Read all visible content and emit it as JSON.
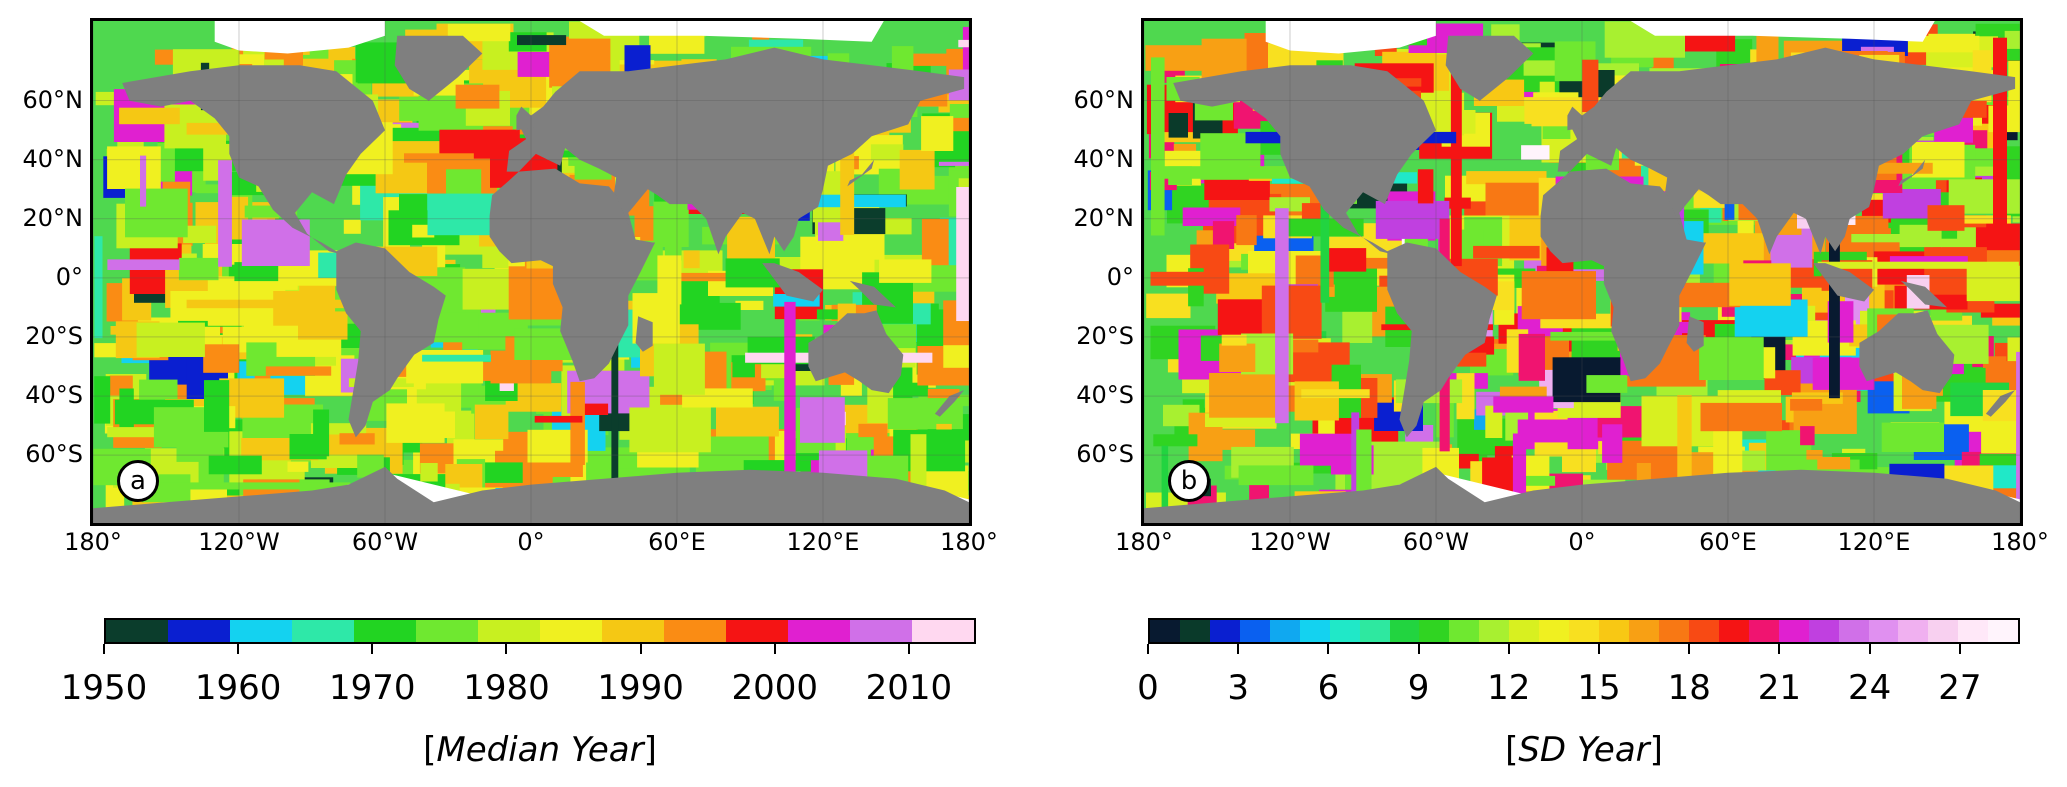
{
  "lat_labels": [
    "60°N",
    "40°N",
    "20°N",
    "0°",
    "20°S",
    "40°S",
    "60°S"
  ],
  "lat_values": [
    60,
    40,
    20,
    0,
    -20,
    -40,
    -60
  ],
  "lon_labels": [
    "180°",
    "120°W",
    "60°W",
    "0°",
    "60°E",
    "120°E",
    "180°"
  ],
  "lon_values": [
    -180,
    -120,
    -60,
    0,
    60,
    120,
    180
  ],
  "panels": [
    {
      "badge": "a",
      "colorbar": {
        "title_open": "[",
        "title_italic": "Median Year",
        "title_close": "]",
        "min": 1950,
        "max": 2015,
        "ticks": [
          "1950",
          "1960",
          "1970",
          "1980",
          "1990",
          "2000",
          "2010"
        ],
        "tick_values": [
          1950,
          1960,
          1970,
          1980,
          1990,
          2000,
          2010
        ],
        "colors": [
          "#0b3d2c",
          "#0a1fd0",
          "#14d2f0",
          "#2ee8a8",
          "#22d422",
          "#6fe830",
          "#c8f020",
          "#f0f020",
          "#f5c814",
          "#fa8c14",
          "#f51414",
          "#e020d0",
          "#d070e8",
          "#ffd8f0"
        ]
      }
    },
    {
      "badge": "b",
      "colorbar": {
        "title_open": "[",
        "title_italic": "SD Year",
        "title_close": "]",
        "min": 0,
        "max": 29,
        "ticks": [
          "0",
          "3",
          "6",
          "9",
          "12",
          "15",
          "18",
          "21",
          "24",
          "27"
        ],
        "tick_values": [
          0,
          3,
          6,
          9,
          12,
          15,
          18,
          21,
          24,
          27
        ],
        "colors": [
          "#081a30",
          "#0a3a2a",
          "#0a1fd0",
          "#0a60f0",
          "#10a8f0",
          "#14d2f0",
          "#20e8c8",
          "#2ee8a0",
          "#22d440",
          "#30d422",
          "#6fe830",
          "#a8f030",
          "#d8f020",
          "#f0f020",
          "#f8e020",
          "#f8c814",
          "#f8a014",
          "#f87814",
          "#f84a14",
          "#f51414",
          "#f01470",
          "#e020d0",
          "#c040e0",
          "#d070e8",
          "#e090f0",
          "#f0b0f0",
          "#f8d0f0",
          "#ffe8f8",
          "#fff4fc"
        ]
      }
    }
  ]
}
